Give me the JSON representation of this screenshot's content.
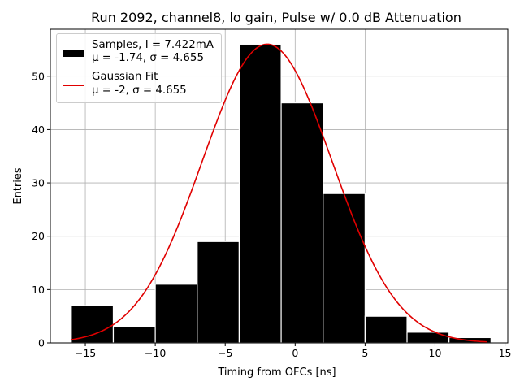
{
  "chart_data": {
    "type": "bar",
    "title": "Run 2092, channel8, lo gain, Pulse w/ 0.0 dB Attenuation",
    "xlabel": "Timing from OFCs [ns]",
    "ylabel": "Entries",
    "xlim": [
      -17.5,
      15.2
    ],
    "ylim": [
      0,
      58.8
    ],
    "xticks": [
      -15,
      -10,
      -5,
      0,
      5,
      10,
      15
    ],
    "yticks": [
      0,
      10,
      20,
      30,
      40,
      50
    ],
    "grid": true,
    "bin_edges": [
      -16,
      -13,
      -10,
      -7,
      -4,
      -1,
      2,
      5,
      8,
      11,
      14
    ],
    "histogram": {
      "name": "Samples, I = 7.422mA",
      "stats": "μ = -1.74, σ = 4.655",
      "values": [
        7,
        3,
        11,
        19,
        56,
        45,
        28,
        5,
        2,
        1
      ],
      "color": "#000000"
    },
    "fit": {
      "name": "Gaussian Fit",
      "stats": "μ = -2, σ = 4.655",
      "mu": -2,
      "sigma": 4.655,
      "amplitude": 56,
      "x_range": [
        -16,
        13.7
      ],
      "color": "#e00000"
    },
    "legend": {
      "placement": "top-left",
      "samples_line1": "Samples, I = 7.422mA",
      "samples_line2": "μ = -1.74, σ = 4.655",
      "fit_line1": "Gaussian Fit",
      "fit_line2": "μ = -2, σ = 4.655"
    }
  }
}
